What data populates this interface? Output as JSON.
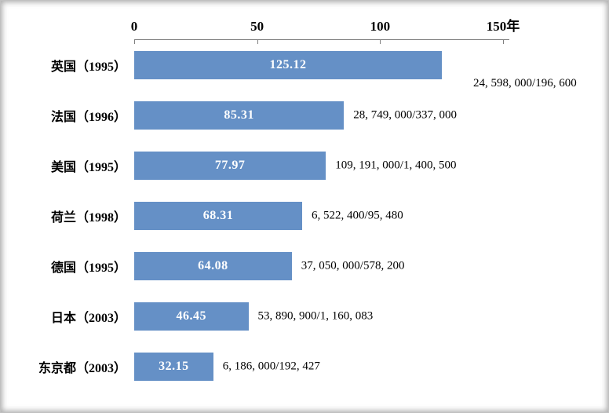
{
  "chart_data": {
    "type": "bar",
    "orientation": "horizontal",
    "title": "",
    "xlabel": "",
    "ylabel": "",
    "grid": false,
    "legend": "none",
    "x_axis": {
      "position": "top",
      "max": 150,
      "ticks": [
        {
          "value": 0,
          "label": "0"
        },
        {
          "value": 50,
          "label": "50"
        },
        {
          "value": 100,
          "label": "100"
        },
        {
          "value": 150,
          "label": "150年"
        }
      ]
    },
    "rows": [
      {
        "label": "英国（1995）",
        "value": 125.12,
        "value_label": "125.12",
        "annotation": "24, 598, 000/196, 600",
        "annotation_below": true
      },
      {
        "label": "法国（1996）",
        "value": 85.31,
        "value_label": "85.31",
        "annotation": "28, 749, 000/337, 000",
        "annotation_below": false
      },
      {
        "label": "美国（1995）",
        "value": 77.97,
        "value_label": "77.97",
        "annotation": "109, 191, 000/1, 400, 500",
        "annotation_below": false
      },
      {
        "label": "荷兰（1998）",
        "value": 68.31,
        "value_label": "68.31",
        "annotation": "6, 522, 400/95, 480",
        "annotation_below": false
      },
      {
        "label": "德国（1995）",
        "value": 64.08,
        "value_label": "64.08",
        "annotation": "37, 050, 000/578, 200",
        "annotation_below": false
      },
      {
        "label": "日本（2003）",
        "value": 46.45,
        "value_label": "46.45",
        "annotation": "53, 890, 900/1, 160, 083",
        "annotation_below": false
      },
      {
        "label": "东京都（2003）",
        "value": 32.15,
        "value_label": "32.15",
        "annotation": "6, 186, 000/192, 427",
        "annotation_below": false
      }
    ],
    "colors": {
      "bar": "#6590c6",
      "axis": "#7f7f7f",
      "text": "#000000",
      "value_text": "#ffffff"
    }
  }
}
